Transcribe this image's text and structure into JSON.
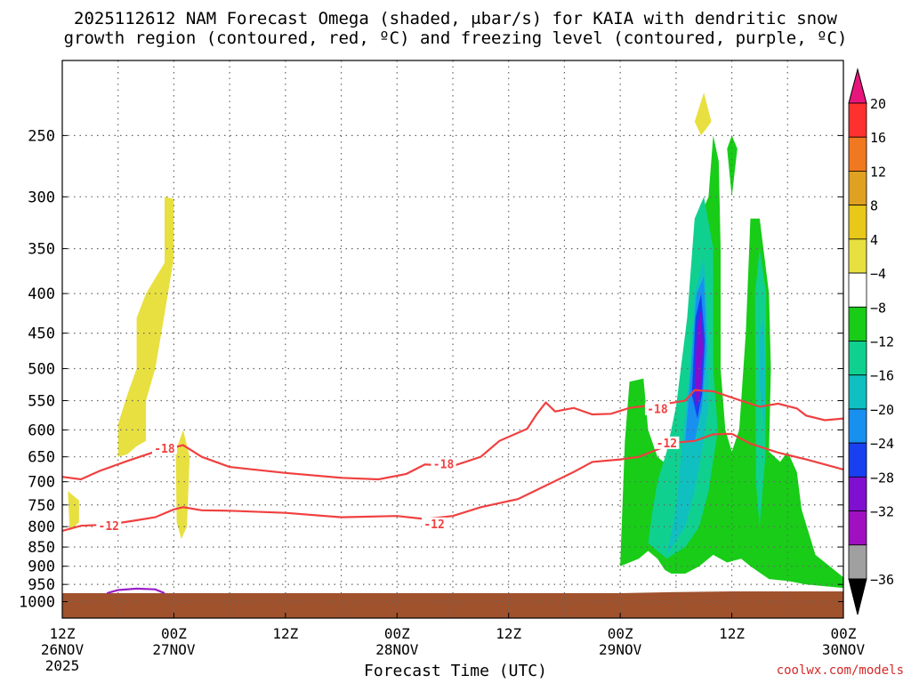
{
  "page": {
    "title_line1": "2025112612 NAM Forecast Omega (shaded, μbar/s) for KAIA with dendritic snow",
    "title_line2": "growth region (contoured, red, ºC) and freezing level (contoured, purple, ºC)",
    "credit": "coolwx.com/models"
  },
  "chart_data": {
    "type": "area",
    "title": "2025112612 NAM Forecast Omega (shaded, μbar/s) for KAIA with dendritic snow growth region (contoured, red, ºC) and freezing level (contoured, purple, ºC)",
    "xlabel": "Forecast Time (UTC)",
    "ylabel": "",
    "x_range_hours": [
      0,
      84
    ],
    "y_range_hPa": [
      1050,
      200
    ],
    "grid": true,
    "colors": {
      "ground": "#a0522d",
      "dendritic_contour": "#f04040",
      "freezing_contour": "#9b1fc8",
      "grid": "#666666"
    },
    "x_ticks": [
      {
        "h": 0,
        "top": "12Z",
        "mid": "26NOV",
        "bot": "2025"
      },
      {
        "h": 12,
        "top": "00Z",
        "mid": "27NOV",
        "bot": ""
      },
      {
        "h": 24,
        "top": "12Z",
        "mid": "",
        "bot": ""
      },
      {
        "h": 36,
        "top": "00Z",
        "mid": "28NOV",
        "bot": ""
      },
      {
        "h": 48,
        "top": "12Z",
        "mid": "",
        "bot": ""
      },
      {
        "h": 60,
        "top": "00Z",
        "mid": "29NOV",
        "bot": ""
      },
      {
        "h": 72,
        "top": "12Z",
        "mid": "",
        "bot": ""
      },
      {
        "h": 84,
        "top": "00Z",
        "mid": "30NOV",
        "bot": ""
      }
    ],
    "y_ticks": [
      250,
      300,
      350,
      400,
      450,
      500,
      550,
      600,
      650,
      700,
      750,
      800,
      850,
      900,
      950,
      1000
    ],
    "colorbar": {
      "labels": [
        "20",
        "16",
        "12",
        "8",
        "4",
        "−4",
        "−8",
        "−12",
        "−16",
        "−20",
        "−24",
        "−28",
        "−32",
        "−36"
      ],
      "top_arrow_color": "#e8167c",
      "bottom_arrow_color": "#000000",
      "bands": [
        "#ff3030",
        "#f07820",
        "#e0a020",
        "#e8c818",
        "#e8e040",
        "#ffffff",
        "#18cc18",
        "#10d090",
        "#10c0c0",
        "#1890f0",
        "#1840f0",
        "#8010d0",
        "#a010c0",
        "#a0a0a0"
      ]
    },
    "ground_pressure_hPa": [
      [
        0,
        975
      ],
      [
        12,
        975
      ],
      [
        60,
        975
      ],
      [
        66,
        972
      ],
      [
        72,
        970
      ],
      [
        84,
        970
      ]
    ],
    "contours": [
      {
        "label": "-18",
        "color": "#f04040",
        "label_at": [
          [
            11,
            635
          ],
          [
            41,
            665
          ],
          [
            64,
            565
          ]
        ],
        "points": [
          [
            0,
            690
          ],
          [
            2,
            695
          ],
          [
            4,
            678
          ],
          [
            7,
            658
          ],
          [
            10,
            640
          ],
          [
            12,
            632
          ],
          [
            13,
            628
          ],
          [
            15,
            650
          ],
          [
            18,
            670
          ],
          [
            24,
            682
          ],
          [
            30,
            692
          ],
          [
            34,
            695
          ],
          [
            37,
            684
          ],
          [
            39,
            665
          ],
          [
            42,
            668
          ],
          [
            45,
            650
          ],
          [
            47,
            620
          ],
          [
            50,
            598
          ],
          [
            51,
            573
          ],
          [
            52,
            553
          ],
          [
            53,
            568
          ],
          [
            55,
            562
          ],
          [
            57,
            573
          ],
          [
            59,
            572
          ],
          [
            61,
            562
          ],
          [
            63,
            558
          ],
          [
            65,
            555
          ],
          [
            67,
            550
          ],
          [
            68,
            533
          ],
          [
            70,
            535
          ],
          [
            73,
            550
          ],
          [
            75,
            560
          ],
          [
            77,
            555
          ],
          [
            79,
            563
          ],
          [
            80,
            575
          ],
          [
            82,
            583
          ],
          [
            84,
            580
          ]
        ]
      },
      {
        "label": "-12",
        "color": "#f04040",
        "label_at": [
          [
            5,
            800
          ],
          [
            40,
            795
          ],
          [
            65,
            625
          ]
        ],
        "points": [
          [
            0,
            810
          ],
          [
            2,
            798
          ],
          [
            5,
            795
          ],
          [
            8,
            785
          ],
          [
            10,
            778
          ],
          [
            12,
            760
          ],
          [
            13,
            755
          ],
          [
            15,
            762
          ],
          [
            18,
            763
          ],
          [
            24,
            768
          ],
          [
            30,
            778
          ],
          [
            36,
            775
          ],
          [
            39,
            782
          ],
          [
            42,
            775
          ],
          [
            45,
            755
          ],
          [
            49,
            737
          ],
          [
            52,
            708
          ],
          [
            55,
            680
          ],
          [
            57,
            660
          ],
          [
            60,
            655
          ],
          [
            62,
            650
          ],
          [
            64,
            636
          ],
          [
            66,
            623
          ],
          [
            68,
            620
          ],
          [
            70,
            608
          ],
          [
            72,
            607
          ],
          [
            74,
            625
          ],
          [
            77,
            642
          ],
          [
            80,
            655
          ],
          [
            84,
            675
          ]
        ]
      },
      {
        "label": "",
        "color": "#9b1fc8",
        "label_at": [],
        "points": [
          [
            4.8,
            975
          ],
          [
            6,
            966
          ],
          [
            8,
            962
          ],
          [
            10,
            964
          ],
          [
            11,
            975
          ]
        ]
      }
    ],
    "omega_regions": [
      {
        "value_range": "4 to 8",
        "color": "#e8e040",
        "points": [
          [
            6,
            650
          ],
          [
            6,
            590
          ],
          [
            7,
            540
          ],
          [
            8,
            500
          ],
          [
            8,
            430
          ],
          [
            9,
            400
          ],
          [
            11,
            365
          ],
          [
            11,
            300
          ],
          [
            12,
            302
          ],
          [
            12,
            360
          ],
          [
            11,
            425
          ],
          [
            10,
            500
          ],
          [
            9,
            550
          ],
          [
            9,
            620
          ],
          [
            8,
            630
          ],
          [
            7,
            645
          ]
        ]
      },
      {
        "value_range": "4 to 8",
        "color": "#e8e040",
        "points": [
          [
            0.6,
            720
          ],
          [
            1.8,
            740
          ],
          [
            1.8,
            790
          ],
          [
            0.8,
            810
          ]
        ]
      },
      {
        "value_range": "4 to 8",
        "color": "#e8e040",
        "points": [
          [
            12.2,
            640
          ],
          [
            13,
            600
          ],
          [
            13.7,
            650
          ],
          [
            13.4,
            800
          ],
          [
            12.8,
            830
          ],
          [
            12.3,
            790
          ]
        ]
      },
      {
        "value_range": "4 to 8",
        "color": "#e8e040",
        "points": [
          [
            68,
            240
          ],
          [
            69,
            220
          ],
          [
            69.8,
            240
          ],
          [
            68.7,
            250
          ]
        ]
      },
      {
        "value_range": "4 to 8",
        "color": "#e8e040",
        "points": [
          [
            68,
            550
          ],
          [
            68.4,
            530
          ],
          [
            68.9,
            555
          ],
          [
            68.4,
            575
          ]
        ]
      },
      {
        "value_range": "4 to 8",
        "color": "#e8e040",
        "points": [
          [
            74.2,
            600
          ],
          [
            74.8,
            585
          ],
          [
            75.3,
            610
          ],
          [
            74.8,
            640
          ]
        ]
      },
      {
        "value_range": "-4 to -8",
        "color": "#18cc18",
        "points": [
          [
            60,
            900
          ],
          [
            60.5,
            620
          ],
          [
            61,
            520
          ],
          [
            62.5,
            515
          ],
          [
            63,
            600
          ],
          [
            64,
            650
          ],
          [
            66,
            680
          ],
          [
            67,
            700
          ],
          [
            67.5,
            450
          ],
          [
            68,
            330
          ],
          [
            69.5,
            300
          ],
          [
            70,
            250
          ],
          [
            70.6,
            270
          ],
          [
            70.8,
            350
          ],
          [
            70.8,
            500
          ],
          [
            71.3,
            600
          ],
          [
            72,
            640
          ],
          [
            72.8,
            600
          ],
          [
            73.5,
            450
          ],
          [
            74,
            320
          ],
          [
            75,
            320
          ],
          [
            76,
            400
          ],
          [
            76.2,
            500
          ],
          [
            76,
            640
          ],
          [
            77.2,
            660
          ],
          [
            78,
            640
          ],
          [
            79,
            680
          ],
          [
            79.5,
            760
          ],
          [
            81,
            870
          ],
          [
            84,
            930
          ],
          [
            84,
            960
          ],
          [
            80,
            950
          ],
          [
            78,
            940
          ],
          [
            76,
            935
          ],
          [
            74,
            900
          ],
          [
            73,
            880
          ],
          [
            71.5,
            890
          ],
          [
            70,
            870
          ],
          [
            68.5,
            900
          ],
          [
            67,
            920
          ],
          [
            65.5,
            920
          ],
          [
            64.8,
            910
          ],
          [
            64,
            880
          ],
          [
            63,
            860
          ],
          [
            62,
            880
          ]
        ]
      },
      {
        "value_range": "-4 to -8",
        "color": "#18cc18",
        "points": [
          [
            71.5,
            260
          ],
          [
            72,
            250
          ],
          [
            72.6,
            260
          ],
          [
            72,
            300
          ]
        ]
      },
      {
        "value_range": "-8 to -12",
        "color": "#10d090",
        "points": [
          [
            63,
            840
          ],
          [
            63.5,
            760
          ],
          [
            64,
            700
          ],
          [
            65,
            640
          ],
          [
            66,
            560
          ],
          [
            67.2,
            430
          ],
          [
            68,
            320
          ],
          [
            69,
            300
          ],
          [
            70,
            350
          ],
          [
            70,
            500
          ],
          [
            70.5,
            600
          ],
          [
            69.5,
            720
          ],
          [
            68.5,
            800
          ],
          [
            67,
            850
          ],
          [
            65,
            880
          ]
        ]
      },
      {
        "value_range": "-8 to -12",
        "color": "#10d090",
        "points": [
          [
            74.5,
            400
          ],
          [
            75,
            350
          ],
          [
            75.7,
            400
          ],
          [
            75.6,
            650
          ],
          [
            75,
            800
          ],
          [
            74.6,
            700
          ]
        ]
      },
      {
        "value_range": "-12 to -16",
        "color": "#10c0c0",
        "points": [
          [
            65,
            870
          ],
          [
            66,
            760
          ],
          [
            66.8,
            600
          ],
          [
            67.5,
            500
          ],
          [
            68,
            400
          ],
          [
            69,
            360
          ],
          [
            69.5,
            450
          ],
          [
            69.5,
            560
          ],
          [
            68.8,
            640
          ],
          [
            68,
            720
          ],
          [
            67,
            800
          ]
        ]
      },
      {
        "value_range": "-12 to -16",
        "color": "#10c0c0",
        "points": [
          [
            75,
            450
          ],
          [
            75.4,
            430
          ],
          [
            75.6,
            500
          ],
          [
            75.5,
            600
          ],
          [
            75.2,
            560
          ],
          [
            75,
            520
          ]
        ]
      },
      {
        "value_range": "-16 to -20",
        "color": "#1890f0",
        "points": [
          [
            67,
            620
          ],
          [
            67.6,
            500
          ],
          [
            68.2,
            400
          ],
          [
            69,
            380
          ],
          [
            69.3,
            470
          ],
          [
            68.8,
            560
          ],
          [
            68,
            620
          ]
        ]
      },
      {
        "value_range": "-20 to -24",
        "color": "#1840f0",
        "points": [
          [
            67.7,
            540
          ],
          [
            68.1,
            430
          ],
          [
            68.7,
            400
          ],
          [
            69.1,
            460
          ],
          [
            68.8,
            540
          ],
          [
            68.3,
            580
          ]
        ]
      },
      {
        "value_range": "-24 to -28",
        "color": "#8010d0",
        "points": [
          [
            68,
            520
          ],
          [
            68.3,
            440
          ],
          [
            68.7,
            420
          ],
          [
            68.9,
            470
          ],
          [
            68.6,
            540
          ],
          [
            68.2,
            560
          ]
        ]
      }
    ]
  }
}
